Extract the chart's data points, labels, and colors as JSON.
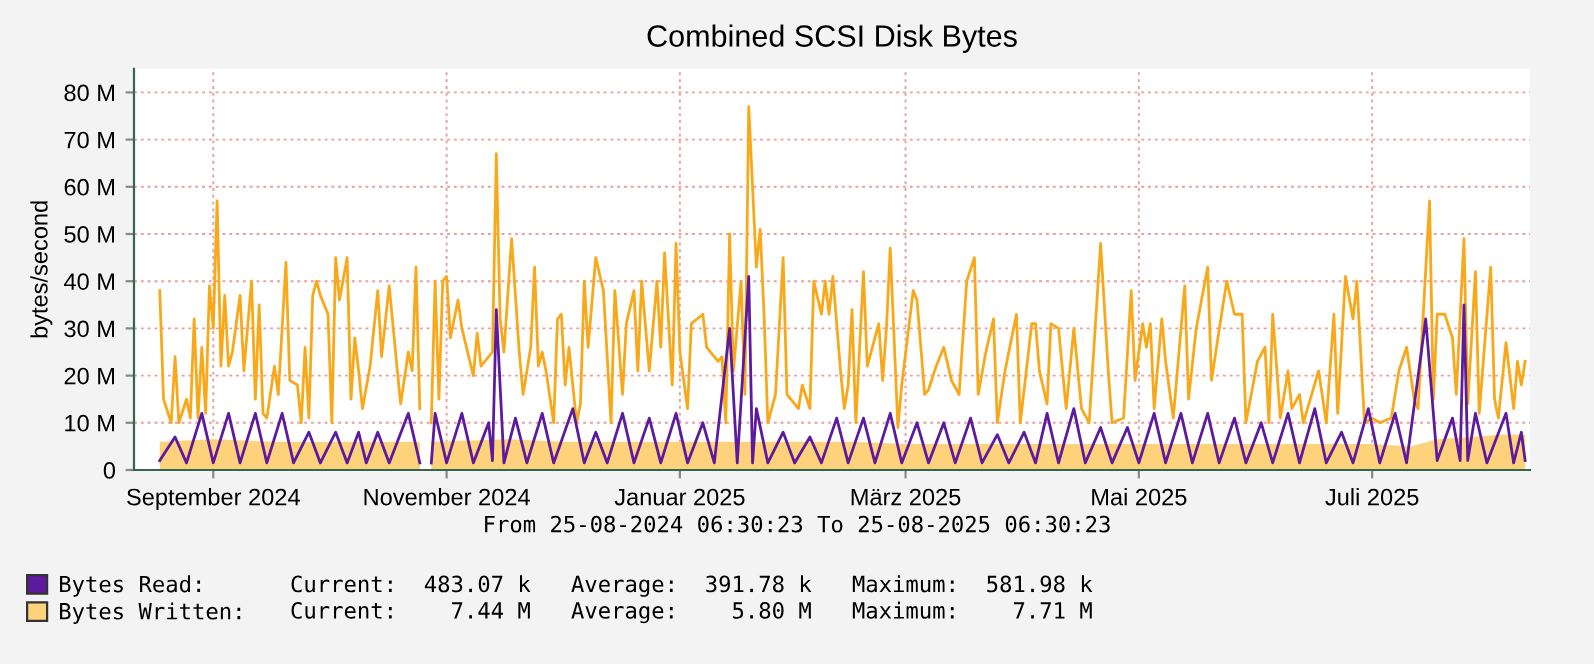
{
  "chart_data": {
    "type": "line",
    "title": "Combined SCSI Disk Bytes",
    "ylabel": "bytes/second",
    "annotations": [
      "From 25-08-2024 06:30:23 To 25-08-2025 06:30:23",
      "Current:  483.07 k   Average:  391.78 k   Maximum:  581.98 k",
      "Current:    7.44 M   Average:    5.80 M   Maximum:    7.71 M"
    ],
    "xlim": [
      "2024-08-25T06:30",
      "2025-08-25T06:30"
    ],
    "xticks": [
      {
        "value": "2024-09-15",
        "label": "September 2024"
      },
      {
        "value": "2024-11-15",
        "label": "November 2024"
      },
      {
        "value": "2025-01-15",
        "label": "Januar 2025"
      },
      {
        "value": "2025-03-15",
        "label": "März 2025"
      },
      {
        "value": "2025-05-15",
        "label": "Mai 2025"
      },
      {
        "value": "2025-07-15",
        "label": "Juli 2025"
      }
    ],
    "ylim": [
      0,
      85000000.0
    ],
    "yticks": [
      0,
      {
        "value": 10000000.0,
        "label": "10 M"
      },
      {
        "value": 20000000.0,
        "label": "20 M"
      },
      {
        "value": 30000000.0,
        "label": "30 M"
      },
      {
        "value": 40000000.0,
        "label": "40 M"
      },
      {
        "value": 50000000.0,
        "label": "50 M"
      },
      {
        "value": 60000000.0,
        "label": "60 M"
      },
      {
        "value": 70000000.0,
        "label": "70 M"
      },
      {
        "value": 80000000.0,
        "label": "80 M"
      }
    ],
    "grid": true,
    "legend": "bottom left",
    "line_style": "solid",
    "series": [
      {
        "name": "Bytes Read:",
        "color": "#5c1a9e",
        "x": [
          "2024-09-01",
          "2024-09-05",
          "2024-09-08",
          "2024-09-12",
          "2024-09-15",
          "2024-09-19",
          "2024-09-22",
          "2024-09-26",
          "2024-09-29",
          "2024-10-03",
          "2024-10-06",
          "2024-10-10",
          "2024-10-13",
          "2024-10-17",
          "2024-10-20",
          "2024-10-23",
          "2024-10-25",
          "2024-10-28",
          "2024-10-31",
          "2024-11-05",
          "2024-11-08",
          "2024-11-09",
          "2024-11-11",
          "2024-11-12",
          "2024-11-15",
          "2024-11-19",
          "2024-11-22",
          "2024-11-26",
          "2024-11-27",
          "2024-11-28",
          "2024-11-30",
          "2024-12-03",
          "2024-12-06",
          "2024-12-10",
          "2024-12-13",
          "2024-12-18",
          "2024-12-21",
          "2024-12-24",
          "2024-12-27",
          "2024-12-31",
          "2025-01-03",
          "2025-01-07",
          "2025-01-10",
          "2025-01-14",
          "2025-01-17",
          "2025-01-21",
          "2025-01-24",
          "2025-01-28",
          "2025-01-30",
          "2025-02-02",
          "2025-02-03",
          "2025-02-04",
          "2025-02-07",
          "2025-02-11",
          "2025-02-14",
          "2025-02-18",
          "2025-02-21",
          "2025-02-25",
          "2025-02-28",
          "2025-03-04",
          "2025-03-07",
          "2025-03-11",
          "2025-03-14",
          "2025-03-18",
          "2025-03-21",
          "2025-03-25",
          "2025-03-28",
          "2025-04-01",
          "2025-04-04",
          "2025-04-08",
          "2025-04-11",
          "2025-04-15",
          "2025-04-18",
          "2025-04-21",
          "2025-04-24",
          "2025-04-28",
          "2025-05-01",
          "2025-05-05",
          "2025-05-08",
          "2025-05-12",
          "2025-05-15",
          "2025-05-19",
          "2025-05-22",
          "2025-05-26",
          "2025-05-29",
          "2025-06-02",
          "2025-06-05",
          "2025-06-09",
          "2025-06-12",
          "2025-06-16",
          "2025-06-19",
          "2025-06-23",
          "2025-06-26",
          "2025-06-30",
          "2025-07-03",
          "2025-07-07",
          "2025-07-10",
          "2025-07-14",
          "2025-07-17",
          "2025-07-21",
          "2025-07-24",
          "2025-07-29",
          "2025-08-01",
          "2025-08-05",
          "2025-08-07",
          "2025-08-08",
          "2025-08-09",
          "2025-08-11",
          "2025-08-14",
          "2025-08-19",
          "2025-08-21",
          "2025-08-23",
          "2025-08-24"
        ],
        "values": [
          2000000.0,
          7000000.0,
          1500000.0,
          12000000.0,
          1500000.0,
          12000000.0,
          1500000.0,
          12000000.0,
          1500000.0,
          12000000.0,
          1500000.0,
          8000000.0,
          1500000.0,
          8000000.0,
          1500000.0,
          8000000.0,
          1500000.0,
          8000000.0,
          1500000.0,
          12000000.0,
          1500000.0,
          null,
          1500000.0,
          12000000.0,
          1500000.0,
          12000000.0,
          1500000.0,
          10000000.0,
          2000000.0,
          34000000.0,
          1500000.0,
          11000000.0,
          1500000.0,
          12000000.0,
          1500000.0,
          13000000.0,
          1500000.0,
          8000000.0,
          1500000.0,
          12000000.0,
          1500000.0,
          11000000.0,
          1500000.0,
          12000000.0,
          1500000.0,
          10000000.0,
          1500000.0,
          30000000.0,
          1500000.0,
          41000000.0,
          1500000.0,
          13000000.0,
          1500000.0,
          8000000.0,
          1500000.0,
          7000000.0,
          1500000.0,
          11000000.0,
          1500000.0,
          11000000.0,
          1500000.0,
          12000000.0,
          1500000.0,
          10000000.0,
          1500000.0,
          10000000.0,
          1500000.0,
          11000000.0,
          1500000.0,
          7500000.0,
          1500000.0,
          8000000.0,
          1500000.0,
          12000000.0,
          1500000.0,
          13000000.0,
          1500000.0,
          9000000.0,
          1500000.0,
          9000000.0,
          1500000.0,
          12000000.0,
          1500000.0,
          12000000.0,
          1500000.0,
          12000000.0,
          1500000.0,
          11000000.0,
          1500000.0,
          10000000.0,
          1500000.0,
          12000000.0,
          1500000.0,
          13000000.0,
          1500000.0,
          8000000.0,
          1500000.0,
          13000000.0,
          1500000.0,
          12000000.0,
          1500000.0,
          32000000.0,
          2000000.0,
          11000000.0,
          2000000.0,
          35000000.0,
          2000000.0,
          12000000.0,
          1500000.0,
          12000000.0,
          1500000.0,
          8000000.0,
          2000000.0
        ]
      },
      {
        "name": "Bytes Written:",
        "type": "area",
        "color": "#fdd27a",
        "x": [
          "2024-09-01",
          "2024-09-15",
          "2024-10-01",
          "2024-10-15",
          "2024-11-01",
          "2024-11-08",
          "2024-11-09",
          "2024-11-11",
          "2024-12-01",
          "2024-12-15",
          "2025-01-01",
          "2025-01-15",
          "2025-02-01",
          "2025-02-15",
          "2025-03-01",
          "2025-03-15",
          "2025-04-01",
          "2025-04-15",
          "2025-05-01",
          "2025-05-15",
          "2025-06-01",
          "2025-06-15",
          "2025-07-01",
          "2025-07-15",
          "2025-07-25",
          "2025-08-01",
          "2025-08-10",
          "2025-08-18",
          "2025-08-24"
        ],
        "values": [
          6000000.0,
          6500000.0,
          6000000.0,
          6000000.0,
          6000000.0,
          6000000.0,
          null,
          6000000.0,
          6500000.0,
          6000000.0,
          6000000.0,
          6000000.0,
          6000000.0,
          6000000.0,
          6000000.0,
          5500000.0,
          5500000.0,
          5500000.0,
          5500000.0,
          5500000.0,
          5500000.0,
          5500000.0,
          5500000.0,
          5500000.0,
          5000000.0,
          6500000.0,
          7000000.0,
          7500000.0,
          7500000.0
        ]
      },
      {
        "color": "#f9a81a",
        "x": [
          "2024-09-01",
          "2024-09-02",
          "2024-09-04",
          "2024-09-05",
          "2024-09-06",
          "2024-09-08",
          "2024-09-09",
          "2024-09-10",
          "2024-09-11",
          "2024-09-12",
          "2024-09-13",
          "2024-09-14",
          "2024-09-15",
          "2024-09-16",
          "2024-09-17",
          "2024-09-18",
          "2024-09-19",
          "2024-09-20",
          "2024-09-22",
          "2024-09-23",
          "2024-09-25",
          "2024-09-26",
          "2024-09-27",
          "2024-09-28",
          "2024-09-29",
          "2024-10-01",
          "2024-10-02",
          "2024-10-04",
          "2024-10-05",
          "2024-10-07",
          "2024-10-08",
          "2024-10-09",
          "2024-10-10",
          "2024-10-11",
          "2024-10-12",
          "2024-10-13",
          "2024-10-15",
          "2024-10-16",
          "2024-10-17",
          "2024-10-18",
          "2024-10-20",
          "2024-10-21",
          "2024-10-22",
          "2024-10-23",
          "2024-10-24",
          "2024-10-26",
          "2024-10-28",
          "2024-10-29",
          "2024-10-31",
          "2024-11-02",
          "2024-11-03",
          "2024-11-05",
          "2024-11-06",
          "2024-11-07",
          "2024-11-08",
          "2024-11-09",
          "2024-11-11",
          "2024-11-12",
          "2024-11-13",
          "2024-11-14",
          "2024-11-15",
          "2024-11-16",
          "2024-11-18",
          "2024-11-19",
          "2024-11-22",
          "2024-11-23",
          "2024-11-24",
          "2024-11-27",
          "2024-11-28",
          "2024-11-29",
          "2024-11-30",
          "2024-12-02",
          "2024-12-03",
          "2024-12-04",
          "2024-12-05",
          "2024-12-07",
          "2024-12-08",
          "2024-12-09",
          "2024-12-10",
          "2024-12-11",
          "2024-12-13",
          "2024-12-14",
          "2024-12-15",
          "2024-12-16",
          "2024-12-17",
          "2024-12-19",
          "2024-12-20",
          "2024-12-21",
          "2024-12-22",
          "2024-12-24",
          "2024-12-26",
          "2024-12-28",
          "2024-12-29",
          "2024-12-31",
          "2025-01-01",
          "2025-01-03",
          "2025-01-04",
          "2025-01-05",
          "2025-01-07",
          "2025-01-09",
          "2025-01-10",
          "2025-01-11",
          "2025-01-13",
          "2025-01-14",
          "2025-01-15",
          "2025-01-17",
          "2025-01-18",
          "2025-01-21",
          "2025-01-22",
          "2025-01-25",
          "2025-01-26",
          "2025-01-27",
          "2025-01-28",
          "2025-01-29",
          "2025-01-31",
          "2025-02-01",
          "2025-02-02",
          "2025-02-04",
          "2025-02-05",
          "2025-02-06",
          "2025-02-07",
          "2025-02-09",
          "2025-02-11",
          "2025-02-12",
          "2025-02-15",
          "2025-02-16",
          "2025-02-18",
          "2025-02-19",
          "2025-02-21",
          "2025-02-22",
          "2025-02-23",
          "2025-02-24",
          "2025-02-26",
          "2025-02-27",
          "2025-02-28",
          "2025-03-01",
          "2025-03-02",
          "2025-03-04",
          "2025-03-05",
          "2025-03-08",
          "2025-03-09",
          "2025-03-10",
          "2025-03-11",
          "2025-03-13",
          "2025-03-14",
          "2025-03-17",
          "2025-03-18",
          "2025-03-20",
          "2025-03-21",
          "2025-03-23",
          "2025-03-25",
          "2025-03-27",
          "2025-03-29",
          "2025-03-31",
          "2025-04-02",
          "2025-04-03",
          "2025-04-05",
          "2025-04-07",
          "2025-04-08",
          "2025-04-10",
          "2025-04-13",
          "2025-04-14",
          "2025-04-17",
          "2025-04-18",
          "2025-04-19",
          "2025-04-21",
          "2025-04-22",
          "2025-04-24",
          "2025-04-26",
          "2025-04-28",
          "2025-04-30",
          "2025-05-02",
          "2025-05-05",
          "2025-05-07",
          "2025-05-08",
          "2025-05-11",
          "2025-05-13",
          "2025-05-14",
          "2025-05-16",
          "2025-05-17",
          "2025-05-18",
          "2025-05-19",
          "2025-05-21",
          "2025-05-22",
          "2025-05-24",
          "2025-05-27",
          "2025-05-28",
          "2025-05-30",
          "2025-06-02",
          "2025-06-03",
          "2025-06-06",
          "2025-06-07",
          "2025-06-09",
          "2025-06-11",
          "2025-06-12",
          "2025-06-15",
          "2025-06-17",
          "2025-06-18",
          "2025-06-19",
          "2025-06-21",
          "2025-06-23",
          "2025-06-24",
          "2025-06-26",
          "2025-06-27",
          "2025-07-01",
          "2025-07-03",
          "2025-07-05",
          "2025-07-06",
          "2025-07-08",
          "2025-07-10",
          "2025-07-11",
          "2025-07-13",
          "2025-07-15",
          "2025-07-17",
          "2025-07-20",
          "2025-07-22",
          "2025-07-24",
          "2025-07-26",
          "2025-07-27",
          "2025-07-30",
          "2025-07-31",
          "2025-08-01",
          "2025-08-03",
          "2025-08-05",
          "2025-08-06",
          "2025-08-08",
          "2025-08-09",
          "2025-08-11",
          "2025-08-12",
          "2025-08-15",
          "2025-08-16",
          "2025-08-17",
          "2025-08-19",
          "2025-08-21",
          "2025-08-22",
          "2025-08-23",
          "2025-08-24"
        ],
        "values": [
          38000000.0,
          15000000.0,
          10000000.0,
          24000000.0,
          10000000.0,
          15000000.0,
          11000000.0,
          32000000.0,
          11000000.0,
          26000000.0,
          12000000.0,
          39000000.0,
          30000000.0,
          57000000.0,
          22000000.0,
          37000000.0,
          22000000.0,
          25000000.0,
          37000000.0,
          21000000.0,
          40000000.0,
          15000000.0,
          35000000.0,
          12000000.0,
          11000000.0,
          22000000.0,
          16000000.0,
          44000000.0,
          19000000.0,
          18000000.0,
          10000000.0,
          26000000.0,
          11000000.0,
          37000000.0,
          40000000.0,
          37000000.0,
          33000000.0,
          10000000.0,
          45000000.0,
          36000000.0,
          45000000.0,
          15000000.0,
          28000000.0,
          21000000.0,
          13000000.0,
          22000000.0,
          38000000.0,
          24000000.0,
          39000000.0,
          22000000.0,
          14000000.0,
          25000000.0,
          21000000.0,
          43000000.0,
          13000000.0,
          null,
          10000000.0,
          40000000.0,
          15000000.0,
          40000000.0,
          41000000.0,
          28000000.0,
          36000000.0,
          30000000.0,
          20000000.0,
          29000000.0,
          22000000.0,
          25000000.0,
          67000000.0,
          32000000.0,
          25000000.0,
          49000000.0,
          37000000.0,
          25000000.0,
          16000000.0,
          26000000.0,
          43000000.0,
          22000000.0,
          25000000.0,
          21000000.0,
          10000000.0,
          32000000.0,
          33000000.0,
          18000000.0,
          26000000.0,
          10000000.0,
          14000000.0,
          40000000.0,
          26000000.0,
          45000000.0,
          38000000.0,
          10000000.0,
          38000000.0,
          16000000.0,
          31000000.0,
          38000000.0,
          21000000.0,
          40000000.0,
          21000000.0,
          40000000.0,
          26000000.0,
          46000000.0,
          18000000.0,
          48000000.0,
          25000000.0,
          13000000.0,
          31000000.0,
          33000000.0,
          26000000.0,
          23000000.0,
          24000000.0,
          10000000.0,
          50000000.0,
          21000000.0,
          40000000.0,
          16000000.0,
          77000000.0,
          43000000.0,
          51000000.0,
          33000000.0,
          10000000.0,
          16000000.0,
          45000000.0,
          16000000.0,
          13000000.0,
          18000000.0,
          13000000.0,
          40000000.0,
          33000000.0,
          40000000.0,
          33000000.0,
          41000000.0,
          21000000.0,
          13000000.0,
          18000000.0,
          34000000.0,
          10000000.0,
          42000000.0,
          22000000.0,
          31000000.0,
          19000000.0,
          30000000.0,
          47000000.0,
          9000000.0,
          18000000.0,
          38000000.0,
          36000000.0,
          16000000.0,
          17000000.0,
          22000000.0,
          26000000.0,
          19000000.0,
          16000000.0,
          40000000.0,
          45000000.0,
          16000000.0,
          25000000.0,
          32000000.0,
          10000000.0,
          21000000.0,
          33000000.0,
          10000000.0,
          31000000.0,
          31000000.0,
          21000000.0,
          14000000.0,
          31000000.0,
          30000000.0,
          13000000.0,
          30000000.0,
          13000000.0,
          10000000.0,
          48000000.0,
          21000000.0,
          10000000.0,
          11000000.0,
          38000000.0,
          19000000.0,
          31000000.0,
          26000000.0,
          31000000.0,
          13000000.0,
          32000000.0,
          23000000.0,
          11000000.0,
          39000000.0,
          15000000.0,
          30000000.0,
          43000000.0,
          19000000.0,
          35000000.0,
          40000000.0,
          33000000.0,
          33000000.0,
          10000000.0,
          23000000.0,
          26000000.0,
          10000000.0,
          33000000.0,
          11000000.0,
          21000000.0,
          13000000.0,
          16000000.0,
          10000000.0,
          21000000.0,
          10000000.0,
          33000000.0,
          12000000.0,
          41000000.0,
          32000000.0,
          40000000.0,
          10000000.0,
          11000000.0,
          10000000.0,
          11000000.0,
          21000000.0,
          26000000.0,
          15000000.0,
          13000000.0,
          57000000.0,
          15000000.0,
          33000000.0,
          33000000.0,
          28000000.0,
          16000000.0,
          49000000.0,
          14000000.0,
          42000000.0,
          12000000.0,
          43000000.0,
          15000000.0,
          11000000.0,
          27000000.0,
          13000000.0,
          23000000.0,
          18000000.0,
          23000000.0
        ]
      }
    ]
  }
}
